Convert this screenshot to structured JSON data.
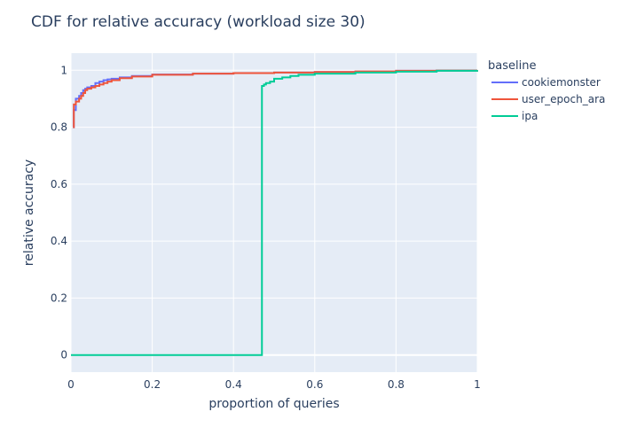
{
  "chart_data": {
    "type": "line",
    "title": "CDF for relative accuracy (workload size 30)",
    "xlabel": "proportion of queries",
    "ylabel": "relative accuracy",
    "xlim": [
      0,
      1
    ],
    "ylim": [
      -0.06,
      1.06
    ],
    "x_ticks": [
      0,
      0.2,
      0.4,
      0.6,
      0.8,
      1
    ],
    "x_tick_labels": [
      "0",
      "0.2",
      "0.4",
      "0.6",
      "0.8",
      "1"
    ],
    "y_ticks": [
      0,
      0.2,
      0.4,
      0.6,
      0.8,
      1
    ],
    "y_tick_labels": [
      "0",
      "0.2",
      "0.4",
      "0.6",
      "0.8",
      "1"
    ],
    "grid": true,
    "legend_title": "baseline",
    "legend_position": "right",
    "series": [
      {
        "name": "cookiemonster",
        "color": "#636efa",
        "x": [
          0.005,
          0.007,
          0.007,
          0.012,
          0.02,
          0.025,
          0.03,
          0.035,
          0.04,
          0.05,
          0.06,
          0.07,
          0.08,
          0.09,
          0.1,
          0.12,
          0.15,
          0.2,
          0.3,
          0.4,
          0.5,
          0.6,
          0.7,
          0.8,
          0.9,
          1.0
        ],
        "y": [
          0.8,
          0.8,
          0.86,
          0.9,
          0.91,
          0.92,
          0.93,
          0.935,
          0.94,
          0.945,
          0.955,
          0.96,
          0.965,
          0.968,
          0.97,
          0.975,
          0.98,
          0.985,
          0.988,
          0.99,
          0.992,
          0.994,
          0.996,
          0.998,
          0.999,
          1.0
        ]
      },
      {
        "name": "user_epoch_ara",
        "color": "#ef553b",
        "x": [
          0.005,
          0.007,
          0.007,
          0.012,
          0.02,
          0.025,
          0.03,
          0.035,
          0.04,
          0.05,
          0.06,
          0.07,
          0.08,
          0.09,
          0.1,
          0.12,
          0.15,
          0.2,
          0.3,
          0.4,
          0.5,
          0.6,
          0.7,
          0.8,
          0.9,
          1.0
        ],
        "y": [
          0.8,
          0.8,
          0.88,
          0.89,
          0.9,
          0.91,
          0.92,
          0.93,
          0.935,
          0.94,
          0.945,
          0.95,
          0.955,
          0.96,
          0.965,
          0.972,
          0.978,
          0.984,
          0.988,
          0.99,
          0.992,
          0.994,
          0.996,
          0.998,
          0.999,
          1.0
        ]
      },
      {
        "name": "ipa",
        "color": "#00cc96",
        "x": [
          0.0,
          0.47,
          0.47,
          0.475,
          0.48,
          0.49,
          0.5,
          0.52,
          0.54,
          0.56,
          0.6,
          0.7,
          0.8,
          0.9,
          1.0
        ],
        "y": [
          0.0,
          0.0,
          0.945,
          0.95,
          0.955,
          0.96,
          0.97,
          0.975,
          0.98,
          0.984,
          0.988,
          0.992,
          0.995,
          0.998,
          1.0
        ]
      }
    ]
  }
}
